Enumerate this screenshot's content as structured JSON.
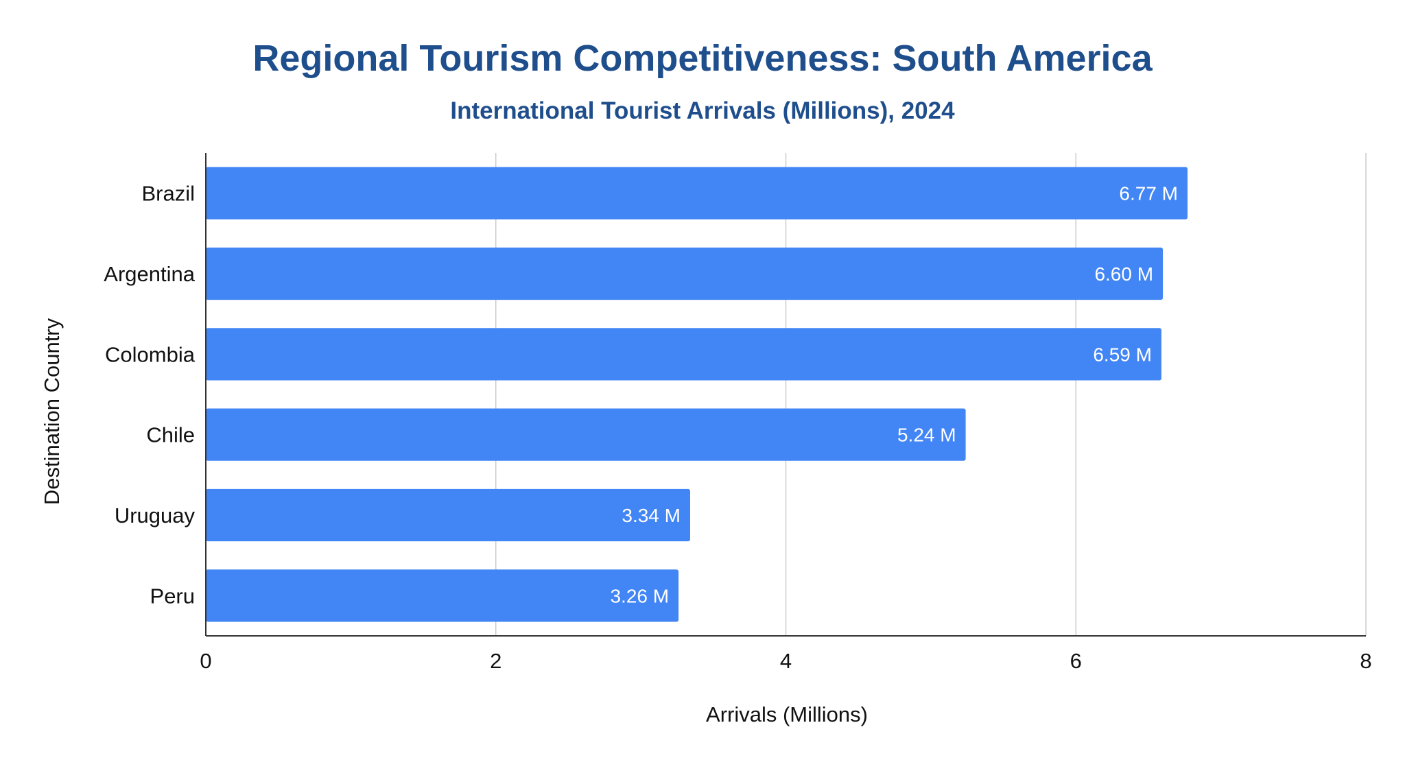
{
  "chart_data": {
    "type": "bar",
    "orientation": "horizontal",
    "title": "Regional Tourism Competitiveness: South America",
    "subtitle": "International Tourist Arrivals (Millions), 2024",
    "xlabel": "Arrivals (Millions)",
    "ylabel": "Destination Country",
    "categories": [
      "Brazil",
      "Argentina",
      "Colombia",
      "Chile",
      "Uruguay",
      "Peru"
    ],
    "values": [
      6.77,
      6.6,
      6.59,
      5.24,
      3.34,
      3.26
    ],
    "data_labels": [
      "6.77 M",
      "6.60 M",
      "6.59 M",
      "5.24 M",
      "3.34 M",
      "3.26 M"
    ],
    "xlim": [
      0,
      8
    ],
    "x_ticks": [
      0,
      2,
      4,
      6,
      8
    ],
    "x_tick_labels": [
      "0",
      "2",
      "4",
      "6",
      "8"
    ],
    "grid": "vertical",
    "legend": "none",
    "colors": {
      "bar": "#4285f4",
      "title": "#1f4e8c",
      "gridline": "#cccccc",
      "axis": "#333333",
      "data_label": "#ffffff",
      "text": "#111111"
    }
  }
}
